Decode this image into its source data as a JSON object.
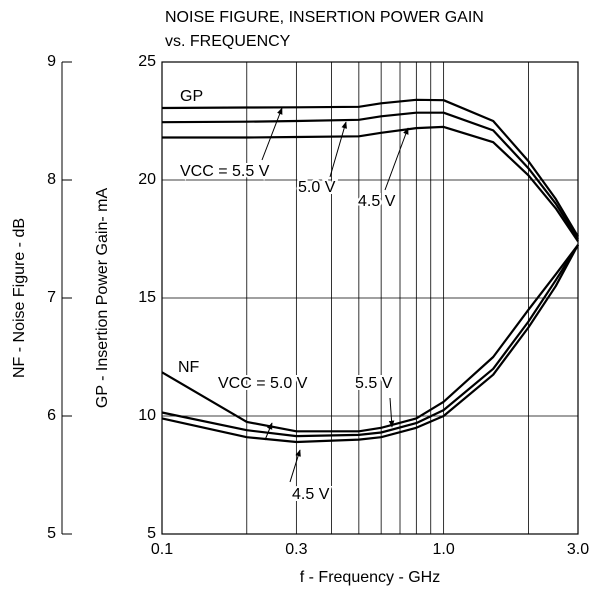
{
  "chart_data": {
    "type": "line",
    "title": [
      "NOISE FIGURE, INSERTION POWER GAIN",
      "vs. FREQUENCY"
    ],
    "xlabel": "f - Frequency - GHz",
    "ylabel": "GP - Insertion Power Gain- mA",
    "y2label": "NF - Noise Figure - dB",
    "xscale": "log",
    "xlim": [
      0.1,
      3.0
    ],
    "xticks": [
      0.1,
      0.3,
      {
        "value": 1,
        "label": "1.0"
      },
      {
        "value": 3,
        "label": "3.0"
      }
    ],
    "xminor": [
      0.2,
      0.4,
      0.5,
      0.6,
      0.7,
      0.8,
      0.9,
      2
    ],
    "ylim": [
      5,
      25
    ],
    "yticks": [
      5,
      10,
      15,
      20,
      25
    ],
    "y2lim": [
      5,
      9
    ],
    "y2ticks": [
      5,
      6,
      7,
      8,
      9
    ],
    "grid": true,
    "x": [
      0.1,
      0.2,
      0.3,
      0.5,
      0.6,
      0.8,
      1.0,
      1.5,
      2.0,
      2.5,
      3.0
    ],
    "series": [
      {
        "name": "GP 5.5 V",
        "color": "#000000",
        "values": [
          23.05,
          23.07,
          23.08,
          23.1,
          23.25,
          23.4,
          23.38,
          22.5,
          20.8,
          19.2,
          17.6
        ]
      },
      {
        "name": "GP 5.0 V",
        "color": "#000000",
        "values": [
          22.45,
          22.47,
          22.5,
          22.55,
          22.7,
          22.85,
          22.85,
          22.1,
          20.5,
          19.0,
          17.5
        ]
      },
      {
        "name": "GP 4.5 V",
        "color": "#000000",
        "values": [
          21.8,
          21.8,
          21.82,
          21.85,
          22.0,
          22.2,
          22.25,
          21.6,
          20.2,
          18.8,
          17.4
        ]
      },
      {
        "name": "NF 5.5 V",
        "color": "#000000",
        "axis": "y2",
        "values": [
          6.37,
          5.95,
          5.87,
          5.87,
          5.9,
          5.98,
          6.12,
          6.5,
          6.9,
          7.2,
          7.45
        ]
      },
      {
        "name": "NF 5.0 V",
        "color": "#000000",
        "axis": "y2",
        "values": [
          6.03,
          5.88,
          5.83,
          5.84,
          5.86,
          5.94,
          6.05,
          6.4,
          6.8,
          7.15,
          7.45
        ]
      },
      {
        "name": "NF 4.5 V",
        "color": "#000000",
        "axis": "y2",
        "values": [
          5.98,
          5.82,
          5.78,
          5.8,
          5.82,
          5.9,
          6.0,
          6.35,
          6.75,
          7.1,
          7.45
        ]
      }
    ],
    "annotations": [
      "GP",
      "VCC = 5.5 V",
      "5.0 V",
      "4.5 V",
      "NF",
      "VCC = 5.0 V",
      "5.5 V",
      "4.5 V"
    ]
  }
}
